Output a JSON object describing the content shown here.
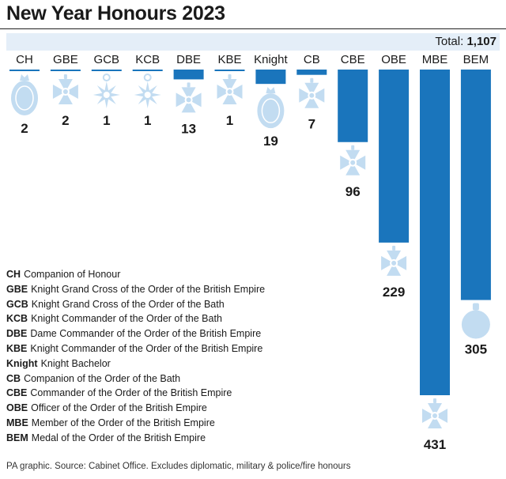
{
  "title": "New Year Honours 2023",
  "total": {
    "label": "Total:",
    "value": "1,107"
  },
  "chart_data": {
    "type": "bar",
    "orientation": "vertical-hanging",
    "categories": [
      "CH",
      "GBE",
      "GCB",
      "KCB",
      "DBE",
      "KBE",
      "Knight",
      "CB",
      "CBE",
      "OBE",
      "MBE",
      "BEM"
    ],
    "values": [
      2,
      2,
      1,
      1,
      13,
      1,
      19,
      7,
      96,
      229,
      431,
      305
    ],
    "value_labels": [
      "2",
      "2",
      "1",
      "1",
      "13",
      "1",
      "19",
      "7",
      "96",
      "229",
      "431",
      "305"
    ],
    "icons": [
      "oval-badge-icon",
      "cross-patee-icon",
      "star-badge-icon",
      "star-badge-icon",
      "cross-patee-icon",
      "cross-patee-icon",
      "oval-badge-icon",
      "cross-patee-icon",
      "cross-patee-icon",
      "cross-patee-icon",
      "cross-patee-icon",
      "round-medal-icon"
    ],
    "ylim": [
      0,
      431
    ],
    "grid": false,
    "legend_position": "bottom-left",
    "colors": {
      "bar": "#1a75bc",
      "icon": "#c2dcf1",
      "band": "#e4eef8",
      "text": "#1a1a1a"
    }
  },
  "legend": [
    {
      "abbr": "CH",
      "text": "Companion of Honour"
    },
    {
      "abbr": "GBE",
      "text": "Knight Grand Cross of the Order of the British Empire"
    },
    {
      "abbr": "GCB",
      "text": "Knight Grand Cross of the Order of the Bath"
    },
    {
      "abbr": "KCB",
      "text": "Knight Commander of the Order of the Bath"
    },
    {
      "abbr": "DBE",
      "text": "Dame Commander of the Order of the British Empire"
    },
    {
      "abbr": "KBE",
      "text": "Knight Commander of the Order of the British Empire"
    },
    {
      "abbr": "Knight",
      "text": "Knight Bachelor"
    },
    {
      "abbr": "CB",
      "text": "Companion of the Order of the Bath"
    },
    {
      "abbr": "CBE",
      "text": "Commander of the Order of the British Empire"
    },
    {
      "abbr": "OBE",
      "text": "Officer of the Order of the British Empire"
    },
    {
      "abbr": "MBE",
      "text": "Member of the Order of the British Empire"
    },
    {
      "abbr": "BEM",
      "text": "Medal of the Order of the British Empire"
    }
  ],
  "source": "PA graphic. Source: Cabinet Office. Excludes diplomatic, military & police/fire honours"
}
